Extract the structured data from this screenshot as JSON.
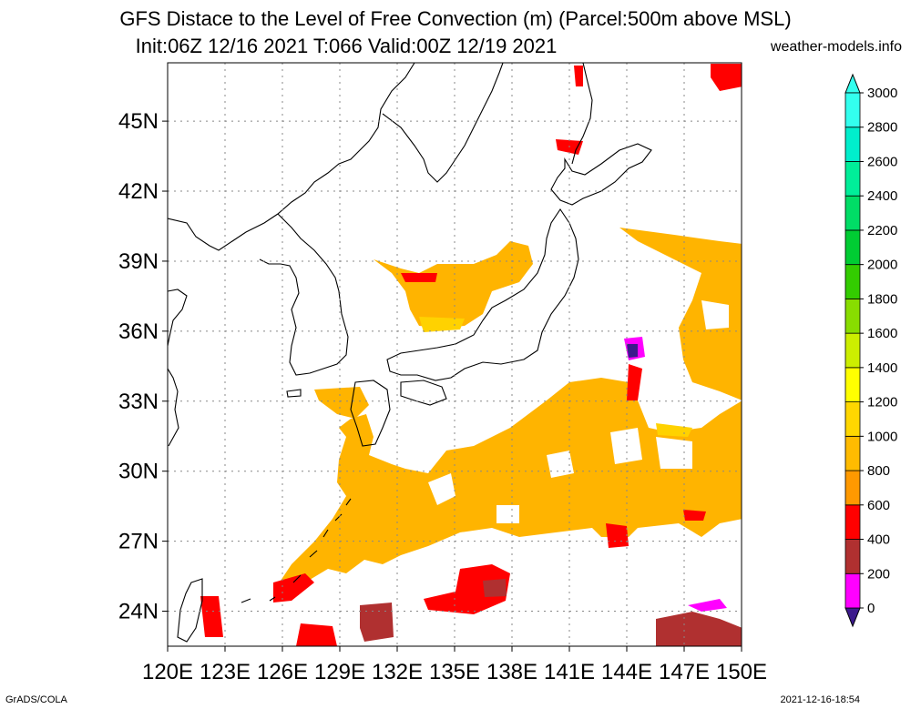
{
  "header": {
    "title_line1": "GFS Distace to the Level of Free Convection (m) (Parcel:500m above MSL)",
    "title_line2": "Init:06Z 12/16 2021 T:066 Valid:00Z 12/19 2021",
    "site": "weather-models.info"
  },
  "footer": {
    "left": "GrADS/COLA",
    "right": "2021-12-16-18:54"
  },
  "axes": {
    "lat_labels": [
      "45N",
      "42N",
      "39N",
      "36N",
      "33N",
      "30N",
      "27N",
      "24N"
    ],
    "lat_values": [
      45,
      42,
      39,
      36,
      33,
      30,
      27,
      24
    ],
    "lon_labels": [
      "120E",
      "123E",
      "126E",
      "129E",
      "132E",
      "135E",
      "138E",
      "141E",
      "144E",
      "147E",
      "150E"
    ],
    "lon_values": [
      120,
      123,
      126,
      129,
      132,
      135,
      138,
      141,
      144,
      147,
      150
    ],
    "lon_range": [
      120,
      150
    ],
    "lat_range": [
      22.5,
      47.5
    ]
  },
  "colorbar": {
    "labels": [
      "0",
      "200",
      "400",
      "600",
      "800",
      "1000",
      "1200",
      "1400",
      "1600",
      "1800",
      "2000",
      "2200",
      "2400",
      "2600",
      "2800",
      "3000"
    ],
    "colors": [
      "#3c1a8c",
      "#ff00ff",
      "#b03030",
      "#ff0000",
      "#ff9900",
      "#ffbb00",
      "#ffd700",
      "#ffff00",
      "#ccee00",
      "#88dd00",
      "#33cc00",
      "#00cc33",
      "#00dd66",
      "#00ee99",
      "#00eecc",
      "#33ffee"
    ]
  },
  "colors": {
    "orange": "#ffb400",
    "yellow": "#ffd200",
    "red": "#ff0000",
    "brown": "#b03030",
    "magenta": "#ff00ff",
    "purple": "#3c1a8c",
    "coast": "#000000",
    "grid": "#888888"
  }
}
